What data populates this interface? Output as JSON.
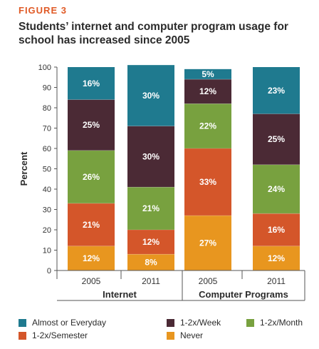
{
  "figure_label": "FIGURE 3",
  "chart_data": {
    "type": "bar",
    "stacked": true,
    "title": "Students’ internet and computer program usage for school has increased since 2005",
    "ylabel": "Percent",
    "ylim": [
      0,
      100
    ],
    "yticks": [
      0,
      10,
      20,
      30,
      40,
      50,
      60,
      70,
      80,
      90,
      100
    ],
    "groups": [
      {
        "label": "Internet",
        "categories": [
          "2005",
          "2011"
        ]
      },
      {
        "label": "Computer Programs",
        "categories": [
          "2005",
          "2011"
        ]
      }
    ],
    "categories": [
      "2005",
      "2011",
      "2005",
      "2011"
    ],
    "series": [
      {
        "name": "Never",
        "color": "#e8961f",
        "values": [
          12,
          8,
          27,
          12
        ],
        "labels": [
          "12%",
          "8%",
          "27%",
          "12%"
        ]
      },
      {
        "name": "1-2x/Semester",
        "color": "#d4562a",
        "values": [
          21,
          12,
          33,
          16
        ],
        "labels": [
          "21%",
          "12%",
          "33%",
          "16%"
        ]
      },
      {
        "name": "1-2x/Month",
        "color": "#78a13f",
        "values": [
          26,
          21,
          22,
          24
        ],
        "labels": [
          "26%",
          "21%",
          "22%",
          "24%"
        ]
      },
      {
        "name": "1-2x/Week",
        "color": "#4b2a35",
        "values": [
          25,
          30,
          12,
          25
        ],
        "labels": [
          "25%",
          "30%",
          "12%",
          "25%"
        ]
      },
      {
        "name": "Almost or Everyday",
        "color": "#1f7a8f",
        "values": [
          16,
          30,
          5,
          23
        ],
        "labels": [
          "16%",
          "30%",
          "5%",
          "23%"
        ]
      }
    ],
    "legend": {
      "placement": "bottom",
      "order": [
        "Almost or Everyday",
        "1-2x/Week",
        "1-2x/Month",
        "1-2x/Semester",
        "Never"
      ]
    },
    "grid": false
  }
}
